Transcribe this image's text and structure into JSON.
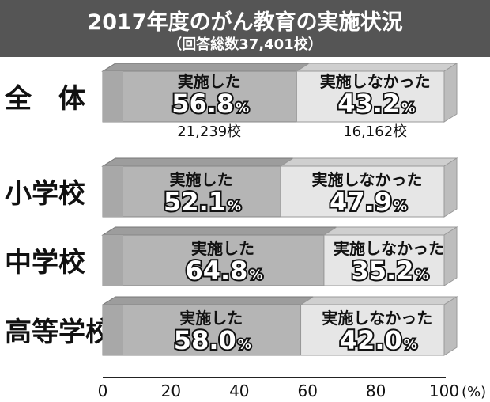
{
  "title": "2017年度のがん教育の実施状況",
  "subtitle": "（回答総数37,401校）",
  "chart_data": {
    "type": "bar",
    "orientation": "horizontal",
    "stacked": true,
    "percent_symbol": "%",
    "categories": [
      "全　体",
      "小学校",
      "中学校",
      "高等学校"
    ],
    "series": [
      {
        "name": "実施した",
        "values": [
          56.8,
          52.1,
          64.8,
          58.0
        ],
        "value_labels": [
          "56.8",
          "52.1",
          "64.8",
          "58.0"
        ],
        "counts": [
          "21,239校",
          "",
          "",
          ""
        ],
        "color": "#b5b5b5"
      },
      {
        "name": "実施しなかった",
        "values": [
          43.2,
          47.9,
          35.2,
          42.0
        ],
        "value_labels": [
          "43.2",
          "47.9",
          "35.2",
          "42.0"
        ],
        "counts": [
          "16,162校",
          "",
          "",
          ""
        ],
        "color": "#e6e6e6"
      }
    ],
    "x_ticks": [
      "0",
      "20",
      "40",
      "60",
      "80",
      "100"
    ],
    "x_unit": "(%)",
    "xlim": [
      0,
      100
    ]
  }
}
